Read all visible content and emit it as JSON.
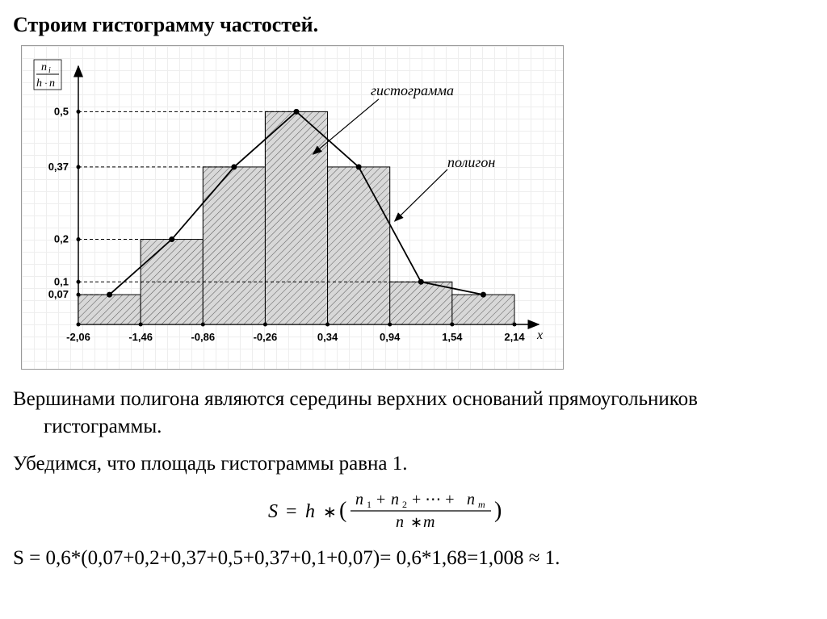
{
  "title": "Строим гистограмму частостей.",
  "chart": {
    "type": "histogram_with_polygon",
    "y_axis_label": "nᵢ / (h·n)",
    "x_axis_label": "x",
    "y_ticks": [
      0.07,
      0.1,
      0.2,
      0.37,
      0.5
    ],
    "y_tick_labels": [
      "0,07",
      "0,1",
      "0,2",
      "0,37",
      "0,5"
    ],
    "x_ticks": [
      -2.06,
      -1.46,
      -0.86,
      -0.26,
      0.34,
      0.94,
      1.54,
      2.14
    ],
    "x_tick_labels": [
      "-2,06",
      "-1,46",
      "-0,86",
      "-0,26",
      "0,34",
      "0,94",
      "1,54",
      "2,14"
    ],
    "bar_heights": [
      0.07,
      0.2,
      0.37,
      0.5,
      0.37,
      0.1,
      0.07
    ],
    "bar_width_data": 0.6,
    "ylim": [
      0,
      0.55
    ],
    "xlim": [
      -2.06,
      2.14
    ],
    "bar_fill_pattern": "diagonal-hatch",
    "bar_fill": "#cccccc",
    "bar_border": "#000000",
    "polygon_color": "#000000",
    "axis_color": "#000000",
    "grid_color": "#eeeeee",
    "label_histogram": "гистограмма",
    "label_polygon": "полигон",
    "tick_fontsize": 13,
    "label_fontsize": 14,
    "annotation_fontsize": 16
  },
  "paragraph1": "Вершинами полигона являются середины верхних оснований прямоугольников гистограммы.",
  "paragraph2": "Убедимся, что площадь гистограммы равна 1.",
  "formula_text": "S = h * ( (n₁ + n₂ + ⋯ + nₘ) / (n * m) )",
  "calculation": "S = 0,6*(0,07+0,2+0,37+0,5+0,37+0,1+0,07)= 0,6*1,68=1,008 ≈ 1."
}
